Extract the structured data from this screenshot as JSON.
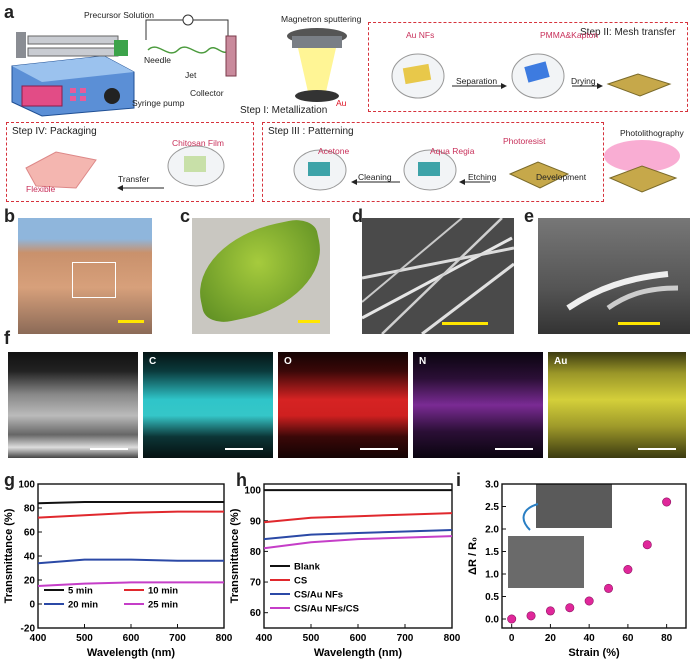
{
  "figure": {
    "panel_labels": [
      "a",
      "b",
      "c",
      "d",
      "e",
      "f",
      "g",
      "h",
      "i"
    ],
    "schematic": {
      "precursor_solution": "Precursor Solution",
      "needle": "Needle",
      "jet": "Jet",
      "collector": "Collector",
      "syringe_pump": "Syringe pump",
      "magnetron": "Magnetron sputtering",
      "au": "Au",
      "step1": "Step I: Metallization",
      "step2": "Step II: Mesh transfer",
      "step3": "Step III : Patterning",
      "step4": "Step IV: Packaging",
      "au_nfs": "Au  NFs",
      "pmma": "PMMA&Kapton",
      "separation": "Separation",
      "drying": "Drying",
      "photolithography": "Photolithography",
      "photoresist": "Photoresist",
      "aqua_regia": "Aqua Regia",
      "acetone": "Acetone",
      "etching": "Etching",
      "development": "Development",
      "cleaning": "Cleaning",
      "chitosan": "Chitosan Film",
      "transfer": "Transfer",
      "flexible": "Flexible"
    },
    "eds_labels": [
      "C",
      "O",
      "N",
      "Au"
    ]
  },
  "chart_data": [
    {
      "type": "line",
      "panel": "g",
      "xlabel": "Wavelength (nm)",
      "ylabel": "Transmittance (%)",
      "xlim": [
        400,
        800
      ],
      "ylim": [
        -20,
        100
      ],
      "xticks": [
        400,
        500,
        600,
        700,
        800
      ],
      "yticks": [
        -20,
        0,
        20,
        40,
        60,
        80,
        100
      ],
      "x": [
        400,
        500,
        600,
        700,
        800
      ],
      "series": [
        {
          "name": "5 min",
          "color": "#111111",
          "values": [
            84,
            85,
            85,
            85,
            85
          ]
        },
        {
          "name": "10 min",
          "color": "#e0282d",
          "values": [
            72,
            74,
            76,
            77,
            77
          ]
        },
        {
          "name": "20 min",
          "color": "#2b49a6",
          "values": [
            34,
            37,
            37,
            36,
            36
          ]
        },
        {
          "name": "25 min",
          "color": "#c53ec8",
          "values": [
            15,
            17,
            18,
            18,
            18
          ]
        }
      ]
    },
    {
      "type": "line",
      "panel": "h",
      "xlabel": "Wavelength (nm)",
      "ylabel": "Transmittance (%)",
      "xlim": [
        400,
        800
      ],
      "ylim": [
        55,
        102
      ],
      "xticks": [
        400,
        500,
        600,
        700,
        800
      ],
      "yticks": [
        60,
        70,
        80,
        90,
        100
      ],
      "x": [
        400,
        500,
        600,
        700,
        800
      ],
      "series": [
        {
          "name": "Blank",
          "color": "#111111",
          "values": [
            100,
            100,
            100,
            100,
            100
          ]
        },
        {
          "name": "CS",
          "color": "#e0282d",
          "values": [
            89.5,
            91,
            91.5,
            92,
            92.5
          ]
        },
        {
          "name": "CS/Au NFs",
          "color": "#2b49a6",
          "values": [
            84,
            85.5,
            86,
            86.5,
            87
          ]
        },
        {
          "name": "CS/Au NFs/CS",
          "color": "#c53ec8",
          "values": [
            81,
            83,
            84,
            84.5,
            85
          ]
        }
      ]
    },
    {
      "type": "scatter",
      "panel": "i",
      "xlabel": "Strain (%)",
      "ylabel": "ΔR / R₀",
      "xlim": [
        -5,
        90
      ],
      "ylim": [
        -0.2,
        3.0
      ],
      "xticks": [
        0,
        20,
        40,
        60,
        80
      ],
      "yticks": [
        0.0,
        0.5,
        1.0,
        1.5,
        2.0,
        2.5,
        3.0
      ],
      "x": [
        0,
        10,
        20,
        30,
        40,
        50,
        60,
        70,
        80
      ],
      "values": [
        0.0,
        0.07,
        0.18,
        0.25,
        0.4,
        0.68,
        1.1,
        1.65,
        2.6
      ],
      "color": "#e0279a"
    }
  ]
}
